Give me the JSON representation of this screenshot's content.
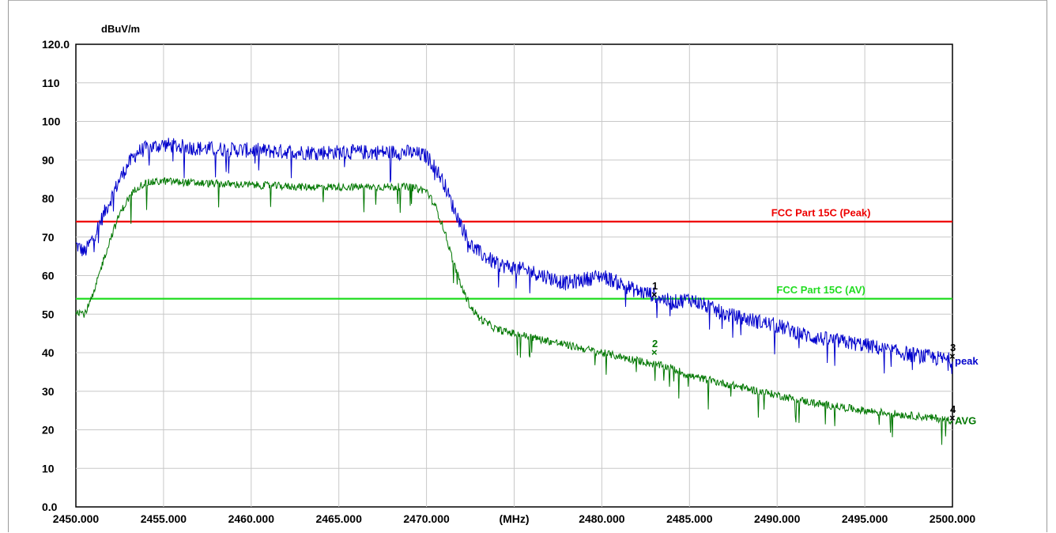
{
  "chart_data": {
    "type": "line",
    "title": "",
    "ylabel": "dBuV/m",
    "xlabel": "(MHz)",
    "xlim": [
      2450,
      2500
    ],
    "ylim": [
      0,
      120
    ],
    "grid": true,
    "y_ticks": [
      {
        "v": 120,
        "label": "120.0"
      },
      {
        "v": 110,
        "label": "110"
      },
      {
        "v": 100,
        "label": "100"
      },
      {
        "v": 90,
        "label": "90"
      },
      {
        "v": 80,
        "label": "80"
      },
      {
        "v": 70,
        "label": "70"
      },
      {
        "v": 60,
        "label": "60"
      },
      {
        "v": 50,
        "label": "50"
      },
      {
        "v": 40,
        "label": "40"
      },
      {
        "v": 30,
        "label": "30"
      },
      {
        "v": 20,
        "label": "20"
      },
      {
        "v": 10,
        "label": "10"
      },
      {
        "v": 0,
        "label": "0.0"
      }
    ],
    "x_ticks": [
      {
        "v": 2450,
        "label": "2450.000"
      },
      {
        "v": 2455,
        "label": "2455.000"
      },
      {
        "v": 2460,
        "label": "2460.000"
      },
      {
        "v": 2465,
        "label": "2465.000"
      },
      {
        "v": 2470,
        "label": "2470.000"
      },
      {
        "v": 2475,
        "label": "(MHz)"
      },
      {
        "v": 2480,
        "label": "2480.000"
      },
      {
        "v": 2485,
        "label": "2485.000"
      },
      {
        "v": 2490,
        "label": "2490.000"
      },
      {
        "v": 2495,
        "label": "2495.000"
      },
      {
        "v": 2500,
        "label": "2500.000"
      }
    ],
    "limit_lines": [
      {
        "name": "FCC Part 15C (Peak)",
        "y": 74,
        "color": "#ee0000"
      },
      {
        "name": "FCC Part 15C (AV)",
        "y": 54,
        "color": "#22dd22"
      }
    ],
    "series": [
      {
        "name": "peak",
        "color": "#0000cc",
        "x": [
          2450,
          2450.5,
          2451,
          2451.5,
          2452,
          2452.5,
          2453,
          2453.5,
          2454,
          2455,
          2457,
          2460,
          2463,
          2466,
          2469,
          2470,
          2470.5,
          2471,
          2471.5,
          2472,
          2472.5,
          2473,
          2474,
          2476,
          2478,
          2480,
          2482,
          2483,
          2484,
          2485,
          2487,
          2490,
          2492,
          2495,
          2497,
          2500
        ],
        "y": [
          68,
          66,
          70,
          75,
          80,
          85,
          89,
          92,
          93,
          94,
          93,
          92.5,
          92,
          92,
          92,
          91,
          88,
          84,
          78,
          73,
          68,
          66,
          63,
          61,
          58,
          60,
          56,
          55,
          53,
          54,
          50,
          47,
          44,
          42,
          40,
          38
        ]
      },
      {
        "name": "AVG",
        "color": "#007700",
        "x": [
          2450,
          2450.5,
          2451,
          2451.5,
          2452,
          2452.5,
          2453,
          2453.5,
          2454,
          2455,
          2457,
          2460,
          2463,
          2466,
          2469,
          2470,
          2470.5,
          2471,
          2471.5,
          2472,
          2472.5,
          2473,
          2474,
          2476,
          2478,
          2480,
          2482,
          2483,
          2484,
          2485,
          2487,
          2490,
          2492,
          2495,
          2497,
          2500
        ],
        "y": [
          51,
          50,
          55,
          63,
          70,
          76,
          80,
          83,
          84,
          84.5,
          84,
          83.5,
          83,
          83,
          83,
          82,
          78,
          72,
          64,
          57,
          52,
          49,
          46,
          44,
          42,
          40,
          38,
          37,
          36,
          34,
          32,
          29,
          27,
          25,
          24,
          22.5
        ]
      }
    ],
    "markers": [
      {
        "label": "1",
        "x": 2483,
        "y": 55,
        "color": "#000000"
      },
      {
        "label": "2",
        "x": 2483,
        "y": 40,
        "color": "#007700"
      },
      {
        "label": "3",
        "x": 2500,
        "y": 39,
        "color": "#000000"
      },
      {
        "label": "4",
        "x": 2500,
        "y": 23,
        "color": "#000000"
      }
    ]
  }
}
